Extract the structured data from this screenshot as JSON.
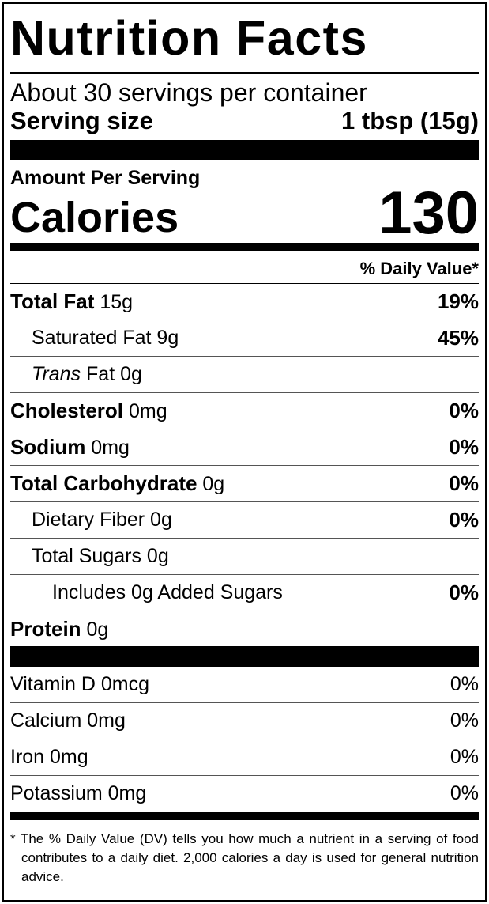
{
  "title": "Nutrition Facts",
  "servings": "About 30 servings per container",
  "serving_size": {
    "label": "Serving size",
    "value": "1 tbsp (15g)"
  },
  "amount_per_serving": "Amount Per Serving",
  "calories": {
    "label": "Calories",
    "value": "130"
  },
  "dv_header": "% Daily Value*",
  "nutrients": [
    {
      "name": "Total Fat",
      "amount": "15g",
      "dv": "19%"
    },
    {
      "name": "Saturated Fat 9g",
      "dv": "45%"
    },
    {
      "name_italic": "Trans",
      "name": "Fat 0g"
    },
    {
      "name": "Cholesterol",
      "amount": "0mg",
      "dv": "0%"
    },
    {
      "name": "Sodium",
      "amount": "0mg",
      "dv": "0%"
    },
    {
      "name": "Total Carbohydrate",
      "amount": "0g",
      "dv": "0%"
    },
    {
      "name": "Dietary Fiber 0g",
      "dv": "0%"
    },
    {
      "name": "Total Sugars 0g"
    },
    {
      "name": "Includes 0g Added Sugars",
      "dv": "0%"
    },
    {
      "name": "Protein",
      "amount": "0g"
    }
  ],
  "vitamins": [
    {
      "name": "Vitamin D 0mcg",
      "dv": "0%"
    },
    {
      "name": "Calcium 0mg",
      "dv": "0%"
    },
    {
      "name": "Iron 0mg",
      "dv": "0%"
    },
    {
      "name": "Potassium 0mg",
      "dv": "0%"
    }
  ],
  "footnote": "* The % Daily Value (DV) tells you how much a nutrient in a serving of food contributes to a daily diet. 2,000 calories a day is used for general nutrition advice."
}
